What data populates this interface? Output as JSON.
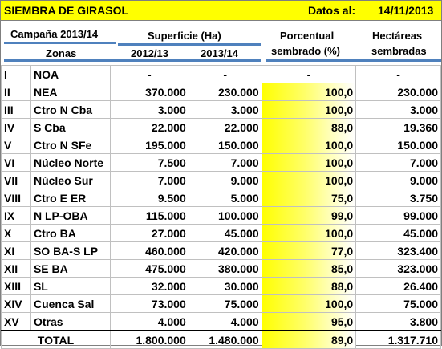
{
  "title": "SIEMBRA DE GIRASOL",
  "date_label": "Datos al:",
  "date_value": "14/11/2013",
  "campaign": "Campaña 2013/14",
  "header": {
    "superficie": "Superficie (Ha)",
    "porcentual_1": "Porcentual",
    "porcentual_2": "sembrado (%)",
    "hectareas_1": "Hectáreas",
    "hectareas_2": "sembradas",
    "zonas": "Zonas",
    "y2012": "2012/13",
    "y2013": "2013/14"
  },
  "rows": [
    {
      "num": "I",
      "zona": "NOA",
      "s2012": "-",
      "s2013": "-",
      "pct": "-",
      "ha": "-"
    },
    {
      "num": "II",
      "zona": "NEA",
      "s2012": "370.000",
      "s2013": "230.000",
      "pct": "100,0",
      "ha": "230.000"
    },
    {
      "num": "III",
      "zona": "Ctro N Cba",
      "s2012": "3.000",
      "s2013": "3.000",
      "pct": "100,0",
      "ha": "3.000"
    },
    {
      "num": "IV",
      "zona": "S Cba",
      "s2012": "22.000",
      "s2013": "22.000",
      "pct": "88,0",
      "ha": "19.360"
    },
    {
      "num": "V",
      "zona": "Ctro N SFe",
      "s2012": "195.000",
      "s2013": "150.000",
      "pct": "100,0",
      "ha": "150.000"
    },
    {
      "num": "VI",
      "zona": "Núcleo Norte",
      "s2012": "7.500",
      "s2013": "7.000",
      "pct": "100,0",
      "ha": "7.000"
    },
    {
      "num": "VII",
      "zona": "Núcleo Sur",
      "s2012": "7.000",
      "s2013": "9.000",
      "pct": "100,0",
      "ha": "9.000"
    },
    {
      "num": "VIII",
      "zona": "Ctro E ER",
      "s2012": "9.500",
      "s2013": "5.000",
      "pct": "75,0",
      "ha": "3.750"
    },
    {
      "num": "IX",
      "zona": "N LP-OBA",
      "s2012": "115.000",
      "s2013": "100.000",
      "pct": "99,0",
      "ha": "99.000"
    },
    {
      "num": "X",
      "zona": "Ctro BA",
      "s2012": "27.000",
      "s2013": "45.000",
      "pct": "100,0",
      "ha": "45.000"
    },
    {
      "num": "XI",
      "zona": "SO BA-S LP",
      "s2012": "460.000",
      "s2013": "420.000",
      "pct": "77,0",
      "ha": "323.400"
    },
    {
      "num": "XII",
      "zona": "SE BA",
      "s2012": "475.000",
      "s2013": "380.000",
      "pct": "85,0",
      "ha": "323.000"
    },
    {
      "num": "XIII",
      "zona": "SL",
      "s2012": "32.000",
      "s2013": "30.000",
      "pct": "88,0",
      "ha": "26.400"
    },
    {
      "num": "XIV",
      "zona": "Cuenca Sal",
      "s2012": "73.000",
      "s2013": "75.000",
      "pct": "100,0",
      "ha": "75.000"
    },
    {
      "num": "XV",
      "zona": "Otras",
      "s2012": "4.000",
      "s2013": "4.000",
      "pct": "95,0",
      "ha": "3.800"
    }
  ],
  "total": {
    "label": "TOTAL",
    "s2012": "1.800.000",
    "s2013": "1.480.000",
    "pct": "89,0",
    "ha": "1.317.710"
  },
  "colors": {
    "title_bar": "#ffff00",
    "underline": "#4f81bd"
  }
}
